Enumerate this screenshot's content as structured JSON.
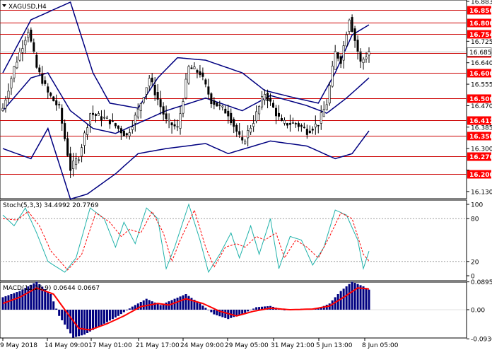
{
  "header": {
    "symbol_text": "XAGUSD,H4",
    "stoch_text": "Stoch(5,3,3) 34.4992 20.7769",
    "macd_text": "MACD(12,26,9) 0.0644 0.0667"
  },
  "colors": {
    "background": "#ffffff",
    "candles": "#000000",
    "bands": "#000080",
    "level": "#cc0000",
    "level_label_bg": "#ff0000",
    "stoch_main": "#20b2aa",
    "stoch_signal": "#ff0000",
    "macd_hist": "#000080",
    "macd_signal": "#ff0000",
    "separator": "#000000"
  },
  "price_axis": {
    "min": 16.11,
    "max": 16.88,
    "ticks": [
      "16.883",
      "16.725",
      "16.640",
      "16.555",
      "16.470",
      "16.385",
      "16.300",
      "16.215",
      "16.130"
    ]
  },
  "levels": [
    {
      "value": 16.85,
      "label": "16.850"
    },
    {
      "value": 16.8,
      "label": "16.800"
    },
    {
      "value": 16.754,
      "label": "16.754"
    },
    {
      "value": 16.679,
      "label": "16.679"
    },
    {
      "value": 16.6,
      "label": "16.600"
    },
    {
      "value": 16.5,
      "label": "16.500"
    },
    {
      "value": 16.412,
      "label": "16.412"
    },
    {
      "value": 16.35,
      "label": "16.350"
    },
    {
      "value": 16.27,
      "label": "16.270"
    },
    {
      "value": 16.2,
      "label": "16.200"
    }
  ],
  "current_price": {
    "value": 16.685,
    "label": "16.685"
  },
  "stoch_axis": {
    "ticks": [
      "100",
      "80",
      "20",
      "0"
    ]
  },
  "macd_axis": {
    "ticks": [
      "0.0895",
      "0.00",
      "-0.0936"
    ]
  },
  "time_axis": {
    "labels": [
      "9 May 2018",
      "14 May 09:00",
      "17 May 01:00",
      "21 May 17:00",
      "24 May 09:00",
      "29 May 05:00",
      "31 May 21:00",
      "5 Jun 13:00",
      "8 Jun 05:00"
    ]
  },
  "chart_data": {
    "type": "candlestick",
    "symbol": "XAGUSD",
    "timeframe": "H4",
    "close_anchors": [
      {
        "bar": 0,
        "close": 16.46
      },
      {
        "bar": 4,
        "close": 16.62
      },
      {
        "bar": 9,
        "close": 16.77
      },
      {
        "bar": 12,
        "close": 16.62
      },
      {
        "bar": 16,
        "close": 16.52
      },
      {
        "bar": 20,
        "close": 16.46
      },
      {
        "bar": 24,
        "close": 16.22
      },
      {
        "bar": 27,
        "close": 16.27
      },
      {
        "bar": 31,
        "close": 16.44
      },
      {
        "bar": 38,
        "close": 16.41
      },
      {
        "bar": 44,
        "close": 16.35
      },
      {
        "bar": 48,
        "close": 16.45
      },
      {
        "bar": 52,
        "close": 16.58
      },
      {
        "bar": 58,
        "close": 16.41
      },
      {
        "bar": 62,
        "close": 16.38
      },
      {
        "bar": 66,
        "close": 16.62
      },
      {
        "bar": 70,
        "close": 16.6
      },
      {
        "bar": 74,
        "close": 16.49
      },
      {
        "bar": 80,
        "close": 16.44
      },
      {
        "bar": 85,
        "close": 16.32
      },
      {
        "bar": 89,
        "close": 16.41
      },
      {
        "bar": 93,
        "close": 16.52
      },
      {
        "bar": 99,
        "close": 16.4
      },
      {
        "bar": 104,
        "close": 16.4
      },
      {
        "bar": 108,
        "close": 16.37
      },
      {
        "bar": 112,
        "close": 16.4
      },
      {
        "bar": 115,
        "close": 16.48
      },
      {
        "bar": 118,
        "close": 16.68
      },
      {
        "bar": 120,
        "close": 16.65
      },
      {
        "bar": 123,
        "close": 16.82
      },
      {
        "bar": 127,
        "close": 16.64
      },
      {
        "bar": 130,
        "close": 16.685
      }
    ],
    "bands_upper_anchors": [
      {
        "bar": 0,
        "value": 16.6
      },
      {
        "bar": 10,
        "value": 16.81
      },
      {
        "bar": 18,
        "value": 16.85
      },
      {
        "bar": 24,
        "value": 16.88
      },
      {
        "bar": 32,
        "value": 16.6
      },
      {
        "bar": 38,
        "value": 16.48
      },
      {
        "bar": 48,
        "value": 16.46
      },
      {
        "bar": 55,
        "value": 16.58
      },
      {
        "bar": 62,
        "value": 16.66
      },
      {
        "bar": 72,
        "value": 16.65
      },
      {
        "bar": 85,
        "value": 16.6
      },
      {
        "bar": 93,
        "value": 16.53
      },
      {
        "bar": 104,
        "value": 16.5
      },
      {
        "bar": 112,
        "value": 16.48
      },
      {
        "bar": 118,
        "value": 16.6
      },
      {
        "bar": 124,
        "value": 16.75
      },
      {
        "bar": 130,
        "value": 16.79
      }
    ],
    "bands_mid_anchors": [
      {
        "bar": 0,
        "value": 16.45
      },
      {
        "bar": 10,
        "value": 16.58
      },
      {
        "bar": 16,
        "value": 16.6
      },
      {
        "bar": 24,
        "value": 16.45
      },
      {
        "bar": 32,
        "value": 16.38
      },
      {
        "bar": 40,
        "value": 16.36
      },
      {
        "bar": 48,
        "value": 16.4
      },
      {
        "bar": 58,
        "value": 16.45
      },
      {
        "bar": 72,
        "value": 16.5
      },
      {
        "bar": 85,
        "value": 16.45
      },
      {
        "bar": 95,
        "value": 16.51
      },
      {
        "bar": 108,
        "value": 16.47
      },
      {
        "bar": 115,
        "value": 16.44
      },
      {
        "bar": 122,
        "value": 16.5
      },
      {
        "bar": 130,
        "value": 16.58
      }
    ],
    "bands_lower_anchors": [
      {
        "bar": 0,
        "value": 16.3
      },
      {
        "bar": 10,
        "value": 16.26
      },
      {
        "bar": 16,
        "value": 16.38
      },
      {
        "bar": 24,
        "value": 16.1
      },
      {
        "bar": 30,
        "value": 16.12
      },
      {
        "bar": 40,
        "value": 16.2
      },
      {
        "bar": 48,
        "value": 16.28
      },
      {
        "bar": 58,
        "value": 16.3
      },
      {
        "bar": 72,
        "value": 16.32
      },
      {
        "bar": 80,
        "value": 16.28
      },
      {
        "bar": 95,
        "value": 16.33
      },
      {
        "bar": 108,
        "value": 16.31
      },
      {
        "bar": 118,
        "value": 16.26
      },
      {
        "bar": 124,
        "value": 16.28
      },
      {
        "bar": 130,
        "value": 16.37
      }
    ],
    "stoch_main_anchors": [
      {
        "bar": 0,
        "value": 85
      },
      {
        "bar": 4,
        "value": 70
      },
      {
        "bar": 8,
        "value": 95
      },
      {
        "bar": 12,
        "value": 60
      },
      {
        "bar": 16,
        "value": 20
      },
      {
        "bar": 22,
        "value": 5
      },
      {
        "bar": 26,
        "value": 25
      },
      {
        "bar": 31,
        "value": 95
      },
      {
        "bar": 36,
        "value": 80
      },
      {
        "bar": 40,
        "value": 40
      },
      {
        "bar": 43,
        "value": 75
      },
      {
        "bar": 47,
        "value": 45
      },
      {
        "bar": 51,
        "value": 95
      },
      {
        "bar": 55,
        "value": 80
      },
      {
        "bar": 58,
        "value": 10
      },
      {
        "bar": 61,
        "value": 40
      },
      {
        "bar": 66,
        "value": 100
      },
      {
        "bar": 70,
        "value": 50
      },
      {
        "bar": 73,
        "value": 5
      },
      {
        "bar": 77,
        "value": 30
      },
      {
        "bar": 81,
        "value": 60
      },
      {
        "bar": 84,
        "value": 25
      },
      {
        "bar": 88,
        "value": 70
      },
      {
        "bar": 91,
        "value": 30
      },
      {
        "bar": 95,
        "value": 80
      },
      {
        "bar": 98,
        "value": 10
      },
      {
        "bar": 102,
        "value": 55
      },
      {
        "bar": 106,
        "value": 50
      },
      {
        "bar": 110,
        "value": 15
      },
      {
        "bar": 114,
        "value": 40
      },
      {
        "bar": 118,
        "value": 92
      },
      {
        "bar": 122,
        "value": 85
      },
      {
        "bar": 126,
        "value": 50
      },
      {
        "bar": 128,
        "value": 10
      },
      {
        "bar": 130,
        "value": 34.4992
      }
    ],
    "stoch_signal_anchors": [
      {
        "bar": 0,
        "value": 80
      },
      {
        "bar": 5,
        "value": 78
      },
      {
        "bar": 9,
        "value": 90
      },
      {
        "bar": 13,
        "value": 70
      },
      {
        "bar": 17,
        "value": 35
      },
      {
        "bar": 23,
        "value": 8
      },
      {
        "bar": 28,
        "value": 30
      },
      {
        "bar": 33,
        "value": 88
      },
      {
        "bar": 38,
        "value": 75
      },
      {
        "bar": 42,
        "value": 55
      },
      {
        "bar": 45,
        "value": 65
      },
      {
        "bar": 49,
        "value": 60
      },
      {
        "bar": 53,
        "value": 90
      },
      {
        "bar": 57,
        "value": 60
      },
      {
        "bar": 60,
        "value": 20
      },
      {
        "bar": 63,
        "value": 50
      },
      {
        "bar": 68,
        "value": 92
      },
      {
        "bar": 72,
        "value": 40
      },
      {
        "bar": 75,
        "value": 12
      },
      {
        "bar": 79,
        "value": 40
      },
      {
        "bar": 83,
        "value": 45
      },
      {
        "bar": 86,
        "value": 40
      },
      {
        "bar": 90,
        "value": 55
      },
      {
        "bar": 93,
        "value": 50
      },
      {
        "bar": 97,
        "value": 60
      },
      {
        "bar": 100,
        "value": 25
      },
      {
        "bar": 104,
        "value": 50
      },
      {
        "bar": 108,
        "value": 40
      },
      {
        "bar": 112,
        "value": 25
      },
      {
        "bar": 116,
        "value": 55
      },
      {
        "bar": 120,
        "value": 88
      },
      {
        "bar": 124,
        "value": 80
      },
      {
        "bar": 128,
        "value": 30
      },
      {
        "bar": 130,
        "value": 20.7769
      }
    ],
    "macd_hist_anchors": [
      {
        "bar": 0,
        "value": 0.04
      },
      {
        "bar": 6,
        "value": 0.06
      },
      {
        "bar": 12,
        "value": 0.09
      },
      {
        "bar": 17,
        "value": 0.05
      },
      {
        "bar": 20,
        "value": -0.02
      },
      {
        "bar": 25,
        "value": -0.09
      },
      {
        "bar": 29,
        "value": -0.08
      },
      {
        "bar": 35,
        "value": -0.05
      },
      {
        "bar": 41,
        "value": -0.02
      },
      {
        "bar": 46,
        "value": 0.01
      },
      {
        "bar": 51,
        "value": 0.035
      },
      {
        "bar": 56,
        "value": 0.015
      },
      {
        "bar": 61,
        "value": 0.035
      },
      {
        "bar": 65,
        "value": 0.05
      },
      {
        "bar": 70,
        "value": 0.02
      },
      {
        "bar": 75,
        "value": -0.015
      },
      {
        "bar": 80,
        "value": -0.03
      },
      {
        "bar": 86,
        "value": -0.01
      },
      {
        "bar": 90,
        "value": 0.008
      },
      {
        "bar": 95,
        "value": 0.012
      },
      {
        "bar": 100,
        "value": -0.002
      },
      {
        "bar": 106,
        "value": 0.003
      },
      {
        "bar": 112,
        "value": 0.004
      },
      {
        "bar": 116,
        "value": 0.02
      },
      {
        "bar": 120,
        "value": 0.06
      },
      {
        "bar": 124,
        "value": 0.09
      },
      {
        "bar": 128,
        "value": 0.075
      },
      {
        "bar": 130,
        "value": 0.0644
      }
    ],
    "macd_signal_anchors": [
      {
        "bar": 0,
        "value": 0.02
      },
      {
        "bar": 6,
        "value": 0.04
      },
      {
        "bar": 12,
        "value": 0.07
      },
      {
        "bar": 18,
        "value": 0.05
      },
      {
        "bar": 22,
        "value": 0.0
      },
      {
        "bar": 27,
        "value": -0.06
      },
      {
        "bar": 31,
        "value": -0.065
      },
      {
        "bar": 37,
        "value": -0.045
      },
      {
        "bar": 43,
        "value": -0.02
      },
      {
        "bar": 49,
        "value": 0.01
      },
      {
        "bar": 55,
        "value": 0.02
      },
      {
        "bar": 59,
        "value": 0.015
      },
      {
        "bar": 65,
        "value": 0.035
      },
      {
        "bar": 71,
        "value": 0.02
      },
      {
        "bar": 77,
        "value": -0.005
      },
      {
        "bar": 83,
        "value": -0.02
      },
      {
        "bar": 89,
        "value": -0.005
      },
      {
        "bar": 95,
        "value": 0.005
      },
      {
        "bar": 102,
        "value": 0.0
      },
      {
        "bar": 110,
        "value": 0.002
      },
      {
        "bar": 116,
        "value": 0.012
      },
      {
        "bar": 121,
        "value": 0.04
      },
      {
        "bar": 126,
        "value": 0.07
      },
      {
        "bar": 130,
        "value": 0.0667
      }
    ]
  }
}
